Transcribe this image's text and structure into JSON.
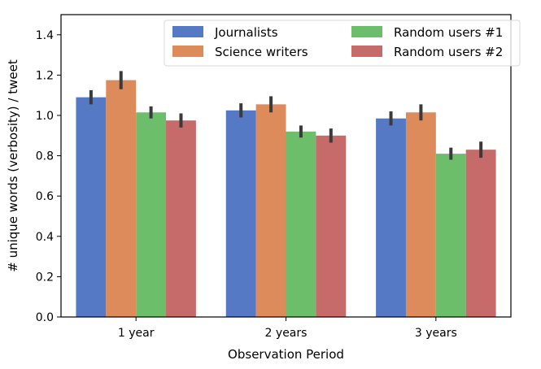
{
  "chart_data": {
    "type": "bar",
    "title": "",
    "xlabel": "Observation Period",
    "ylabel": "# unique words (verbosity) / tweet",
    "categories": [
      "1 year",
      "2 years",
      "3 years"
    ],
    "ylim": [
      0,
      1.5
    ],
    "yticks": [
      "0.0",
      "0.2",
      "0.4",
      "0.6",
      "0.8",
      "1.0",
      "1.2",
      "1.4"
    ],
    "legend_position": "top-right",
    "series": [
      {
        "name": "Journalists",
        "color": "#5579C4",
        "values": [
          1.09,
          1.025,
          0.985
        ],
        "errors": [
          0.035,
          0.035,
          0.035
        ]
      },
      {
        "name": "Science writers",
        "color": "#DD8B5B",
        "values": [
          1.175,
          1.055,
          1.015
        ],
        "errors": [
          0.045,
          0.04,
          0.04
        ]
      },
      {
        "name": "Random users #1",
        "color": "#6DBE6B",
        "values": [
          1.015,
          0.92,
          0.81
        ],
        "errors": [
          0.03,
          0.03,
          0.03
        ]
      },
      {
        "name": "Random users #2",
        "color": "#C66A6A",
        "values": [
          0.975,
          0.9,
          0.83
        ],
        "errors": [
          0.035,
          0.035,
          0.04
        ]
      }
    ]
  }
}
